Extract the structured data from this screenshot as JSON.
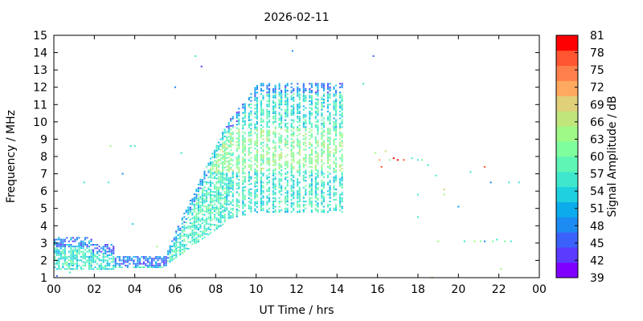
{
  "chart_data": {
    "type": "heatmap",
    "title": "2026-02-11",
    "xlabel": "UT Time / hrs",
    "ylabel": "Frequency / MHz",
    "xlim": [
      0,
      24
    ],
    "ylim": [
      1,
      15
    ],
    "x_ticks": [
      "00",
      "02",
      "04",
      "06",
      "08",
      "10",
      "12",
      "14",
      "16",
      "18",
      "20",
      "22",
      "00"
    ],
    "y_ticks": [
      "1",
      "2",
      "3",
      "4",
      "5",
      "6",
      "7",
      "8",
      "9",
      "10",
      "11",
      "12",
      "13",
      "14",
      "15"
    ],
    "grid": false,
    "colorbar": {
      "label": "Signal Amplitude / dB",
      "min": 39,
      "max": 81,
      "ticks": [
        "81",
        "78",
        "75",
        "72",
        "69",
        "66",
        "63",
        "60",
        "57",
        "54",
        "51",
        "48",
        "45",
        "42",
        "39"
      ],
      "colors": [
        "#7f00ff",
        "#5a3bff",
        "#3a62fb",
        "#1d8cf2",
        "#0cacec",
        "#1fd0de",
        "#3fe8cc",
        "#5ff5b5",
        "#7ffe9e",
        "#9ef986",
        "#c0e57a",
        "#e0d07a",
        "#ffa860",
        "#ff7f4a",
        "#ff5530",
        "#ff0000"
      ]
    },
    "cell_size": {
      "dt_hours": 0.1,
      "df_mhz": 0.1
    },
    "series": [
      {
        "comment": "sparse points",
        "points": [
          [
            0.15,
            1.1,
            46
          ],
          [
            0.8,
            1.3,
            55
          ],
          [
            1.5,
            6.5,
            55
          ],
          [
            2.7,
            6.5,
            55
          ],
          [
            2.8,
            8.6,
            63
          ],
          [
            3.4,
            7,
            48
          ],
          [
            3.8,
            8.6,
            57
          ],
          [
            4.0,
            8.6,
            57
          ],
          [
            3.9,
            4.1,
            54
          ],
          [
            5.1,
            2.8,
            63
          ],
          [
            6.0,
            12.0,
            48
          ],
          [
            6.3,
            8.2,
            57
          ],
          [
            7.0,
            13.8,
            55
          ],
          [
            7.3,
            13.2,
            42
          ],
          [
            11.8,
            14.1,
            48
          ],
          [
            15.3,
            12.2,
            57
          ],
          [
            15.8,
            13.8,
            45
          ],
          [
            15.9,
            8.2,
            63
          ],
          [
            16.1,
            7.8,
            72
          ],
          [
            16.2,
            7.4,
            78
          ],
          [
            16.4,
            8.3,
            66
          ],
          [
            16.6,
            7.8,
            60
          ],
          [
            16.8,
            7.9,
            81
          ],
          [
            17.0,
            7.8,
            81
          ],
          [
            17.3,
            7.8,
            78
          ],
          [
            17.7,
            7.9,
            57
          ],
          [
            18.0,
            7.8,
            57
          ],
          [
            18.2,
            7.8,
            60
          ],
          [
            18.5,
            7.5,
            57
          ],
          [
            18.9,
            6.9,
            55
          ],
          [
            18.0,
            5.8,
            55
          ],
          [
            18.0,
            4.5,
            55
          ],
          [
            18.7,
            1.0,
            69
          ],
          [
            19.0,
            3.1,
            63
          ],
          [
            19.3,
            6.1,
            69
          ],
          [
            19.3,
            5.8,
            63
          ],
          [
            20.0,
            5.1,
            51
          ],
          [
            20.3,
            3.1,
            57
          ],
          [
            20.6,
            7.1,
            57
          ],
          [
            20.8,
            3.1,
            63
          ],
          [
            21.1,
            3.1,
            60
          ],
          [
            21.3,
            3.1,
            48
          ],
          [
            21.3,
            7.4,
            78
          ],
          [
            21.6,
            6.5,
            48
          ],
          [
            21.7,
            3.1,
            60
          ],
          [
            21.9,
            3.2,
            57
          ],
          [
            22.1,
            1.5,
            63
          ],
          [
            22.3,
            3.1,
            60
          ],
          [
            22.6,
            3.1,
            57
          ],
          [
            22.5,
            6.5,
            55
          ],
          [
            23.0,
            6.5,
            55
          ]
        ]
      }
    ]
  }
}
